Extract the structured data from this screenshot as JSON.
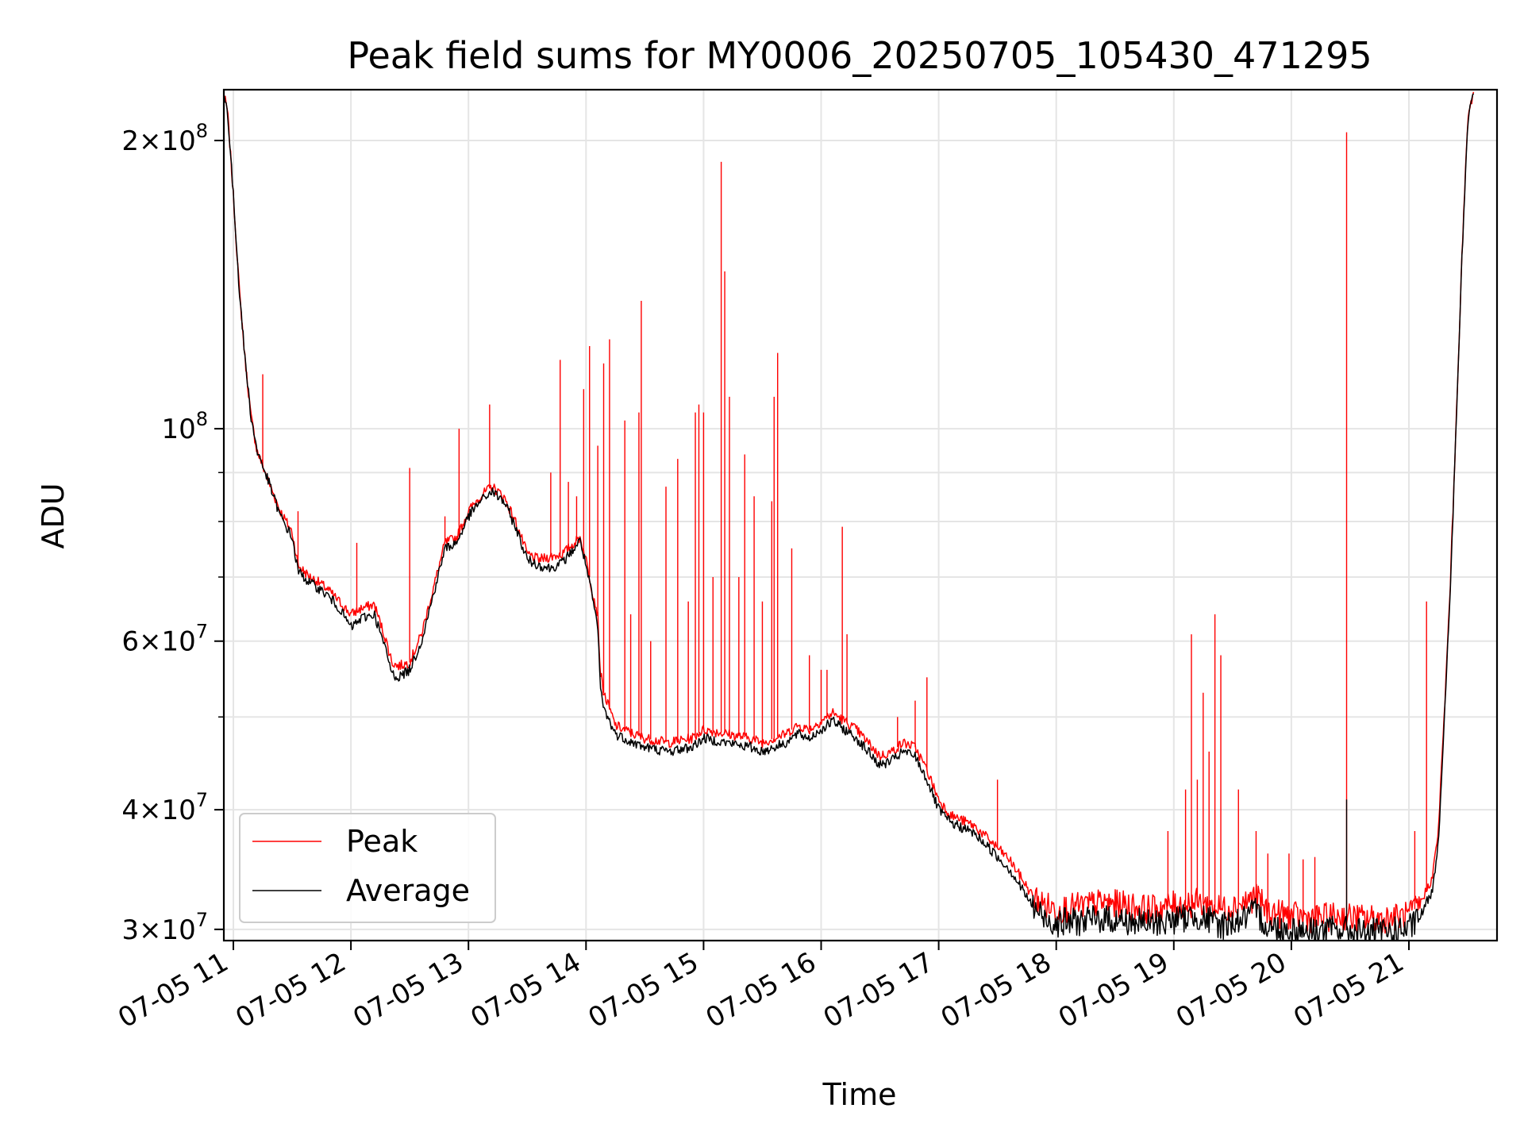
{
  "chart_data": {
    "type": "line",
    "title": "Peak field sums for MY0006_20250705_105430_471295",
    "xlabel": "Time",
    "ylabel": "ADU",
    "xlim": [
      "2025-07-05 10:55",
      "2025-07-05 21:44"
    ],
    "ylim": [
      29200000,
      226000000
    ],
    "yscale": "log",
    "grid": true,
    "legend_position": "lower-left",
    "x_tick_labels": [
      "07-05 11",
      "07-05 12",
      "07-05 13",
      "07-05 14",
      "07-05 15",
      "07-05 16",
      "07-05 17",
      "07-05 18",
      "07-05 19",
      "07-05 20",
      "07-05 21"
    ],
    "x_tick_hours": [
      11,
      12,
      13,
      14,
      15,
      16,
      17,
      18,
      19,
      20,
      21
    ],
    "y_major_ticks": [
      {
        "value": 200000000,
        "mantissa": "2",
        "exp": "8"
      },
      {
        "value": 100000000,
        "mantissa": "",
        "exp": "8"
      },
      {
        "value": 60000000,
        "mantissa": "6",
        "exp": "7"
      },
      {
        "value": 40000000,
        "mantissa": "4",
        "exp": "7"
      },
      {
        "value": 30000000,
        "mantissa": "3",
        "exp": "7"
      }
    ],
    "y_minor_ticks": [
      50000000,
      70000000,
      80000000,
      90000000
    ],
    "x_start_hour": 10.9083,
    "x_end_hour": 21.55,
    "series": [
      {
        "name": "Peak",
        "color": "#ff0000",
        "baseline": [
          [
            10.908,
            226000000
          ],
          [
            10.95,
            215000000
          ],
          [
            11.0,
            175000000
          ],
          [
            11.05,
            140000000
          ],
          [
            11.1,
            118000000
          ],
          [
            11.15,
            103000000
          ],
          [
            11.2,
            95000000
          ],
          [
            11.3,
            88000000
          ],
          [
            11.4,
            82000000
          ],
          [
            11.5,
            78000000
          ],
          [
            11.55,
            72000000
          ],
          [
            11.6,
            71000000
          ],
          [
            11.65,
            70000000
          ],
          [
            11.7,
            69500000
          ],
          [
            11.8,
            68000000
          ],
          [
            11.9,
            66000000
          ],
          [
            12.0,
            64000000
          ],
          [
            12.1,
            65000000
          ],
          [
            12.2,
            65500000
          ],
          [
            12.3,
            60000000
          ],
          [
            12.35,
            57000000
          ],
          [
            12.4,
            56500000
          ],
          [
            12.5,
            57000000
          ],
          [
            12.6,
            61000000
          ],
          [
            12.7,
            68000000
          ],
          [
            12.8,
            76000000
          ],
          [
            12.9,
            77000000
          ],
          [
            13.0,
            82000000
          ],
          [
            13.1,
            85000000
          ],
          [
            13.2,
            87000000
          ],
          [
            13.3,
            85000000
          ],
          [
            13.4,
            80000000
          ],
          [
            13.5,
            74000000
          ],
          [
            13.6,
            73000000
          ],
          [
            13.7,
            73500000
          ],
          [
            13.8,
            74000000
          ],
          [
            13.9,
            76000000
          ],
          [
            13.95,
            77000000
          ],
          [
            14.0,
            73000000
          ],
          [
            14.05,
            68000000
          ],
          [
            14.1,
            64000000
          ],
          [
            14.12,
            56000000
          ],
          [
            14.15,
            53000000
          ],
          [
            14.25,
            49000000
          ],
          [
            14.4,
            48000000
          ],
          [
            14.5,
            47500000
          ],
          [
            14.7,
            47000000
          ],
          [
            14.9,
            47500000
          ],
          [
            15.0,
            48500000
          ],
          [
            15.2,
            48000000
          ],
          [
            15.4,
            47500000
          ],
          [
            15.5,
            47000000
          ],
          [
            15.6,
            47500000
          ],
          [
            15.7,
            48000000
          ],
          [
            15.8,
            49000000
          ],
          [
            15.9,
            48500000
          ],
          [
            16.0,
            49500000
          ],
          [
            16.1,
            50500000
          ],
          [
            16.2,
            49500000
          ],
          [
            16.3,
            48500000
          ],
          [
            16.4,
            47000000
          ],
          [
            16.5,
            45500000
          ],
          [
            16.6,
            46000000
          ],
          [
            16.7,
            47000000
          ],
          [
            16.8,
            46500000
          ],
          [
            16.9,
            44000000
          ],
          [
            17.0,
            41000000
          ],
          [
            17.1,
            39500000
          ],
          [
            17.2,
            39000000
          ],
          [
            17.3,
            38500000
          ],
          [
            17.4,
            37500000
          ],
          [
            17.5,
            36500000
          ],
          [
            17.6,
            35500000
          ],
          [
            17.7,
            34000000
          ],
          [
            17.8,
            32500000
          ],
          [
            17.9,
            31800000
          ],
          [
            18.0,
            31500000
          ],
          [
            18.2,
            31700000
          ],
          [
            18.4,
            32000000
          ],
          [
            18.6,
            31800000
          ],
          [
            18.8,
            31500000
          ],
          [
            19.0,
            31800000
          ],
          [
            19.2,
            32000000
          ],
          [
            19.4,
            31500000
          ],
          [
            19.6,
            32000000
          ],
          [
            19.7,
            32500000
          ],
          [
            19.8,
            31300000
          ],
          [
            20.0,
            31000000
          ],
          [
            20.2,
            30800000
          ],
          [
            20.4,
            31000000
          ],
          [
            20.6,
            30800000
          ],
          [
            20.8,
            30800000
          ],
          [
            21.0,
            31000000
          ],
          [
            21.1,
            32000000
          ],
          [
            21.2,
            34000000
          ],
          [
            21.25,
            38000000
          ],
          [
            21.3,
            50000000
          ],
          [
            21.35,
            68000000
          ],
          [
            21.4,
            100000000
          ],
          [
            21.45,
            150000000
          ],
          [
            21.5,
            210000000
          ],
          [
            21.55,
            226000000
          ]
        ],
        "spikes": [
          [
            11.25,
            114000000
          ],
          [
            11.55,
            82000000
          ],
          [
            12.05,
            76000000
          ],
          [
            12.5,
            91000000
          ],
          [
            12.8,
            81000000
          ],
          [
            12.92,
            100000000
          ],
          [
            13.18,
            106000000
          ],
          [
            13.7,
            90000000
          ],
          [
            13.78,
            118000000
          ],
          [
            13.85,
            88000000
          ],
          [
            13.92,
            85000000
          ],
          [
            13.98,
            110000000
          ],
          [
            14.03,
            122000000
          ],
          [
            14.1,
            96000000
          ],
          [
            14.15,
            117000000
          ],
          [
            14.2,
            124000000
          ],
          [
            14.33,
            102000000
          ],
          [
            14.38,
            64000000
          ],
          [
            14.45,
            104000000
          ],
          [
            14.47,
            136000000
          ],
          [
            14.55,
            60000000
          ],
          [
            14.68,
            87000000
          ],
          [
            14.78,
            93000000
          ],
          [
            14.87,
            66000000
          ],
          [
            14.93,
            104000000
          ],
          [
            14.96,
            106000000
          ],
          [
            15.0,
            104000000
          ],
          [
            15.08,
            70000000
          ],
          [
            15.15,
            190000000
          ],
          [
            15.18,
            146000000
          ],
          [
            15.22,
            108000000
          ],
          [
            15.3,
            70000000
          ],
          [
            15.35,
            94000000
          ],
          [
            15.43,
            85000000
          ],
          [
            15.5,
            66000000
          ],
          [
            15.58,
            84000000
          ],
          [
            15.6,
            108000000
          ],
          [
            15.63,
            120000000
          ],
          [
            15.75,
            75000000
          ],
          [
            15.9,
            58000000
          ],
          [
            16.0,
            56000000
          ],
          [
            16.05,
            56000000
          ],
          [
            16.18,
            79000000
          ],
          [
            16.22,
            61000000
          ],
          [
            16.65,
            50000000
          ],
          [
            16.8,
            52000000
          ],
          [
            16.9,
            55000000
          ],
          [
            17.5,
            43000000
          ],
          [
            18.95,
            38000000
          ],
          [
            19.1,
            42000000
          ],
          [
            19.15,
            61000000
          ],
          [
            19.2,
            43000000
          ],
          [
            19.25,
            53000000
          ],
          [
            19.3,
            46000000
          ],
          [
            19.35,
            64000000
          ],
          [
            19.4,
            58000000
          ],
          [
            19.55,
            42000000
          ],
          [
            19.7,
            38000000
          ],
          [
            19.8,
            36000000
          ],
          [
            19.98,
            36000000
          ],
          [
            20.1,
            35500000
          ],
          [
            20.2,
            35700000
          ],
          [
            20.47,
            204000000
          ],
          [
            21.05,
            38000000
          ],
          [
            21.15,
            66000000
          ]
        ]
      },
      {
        "name": "Average",
        "color": "#000000",
        "baseline": [
          [
            10.908,
            226000000
          ],
          [
            10.95,
            215000000
          ],
          [
            11.0,
            175000000
          ],
          [
            11.05,
            140000000
          ],
          [
            11.1,
            118000000
          ],
          [
            11.15,
            103000000
          ],
          [
            11.2,
            95000000
          ],
          [
            11.3,
            88000000
          ],
          [
            11.4,
            81000000
          ],
          [
            11.5,
            77000000
          ],
          [
            11.55,
            71000000
          ],
          [
            11.6,
            70000000
          ],
          [
            11.65,
            69000000
          ],
          [
            11.7,
            68500000
          ],
          [
            11.8,
            67000000
          ],
          [
            11.9,
            65000000
          ],
          [
            12.0,
            62000000
          ],
          [
            12.1,
            63500000
          ],
          [
            12.2,
            64000000
          ],
          [
            12.3,
            58500000
          ],
          [
            12.35,
            55500000
          ],
          [
            12.4,
            55000000
          ],
          [
            12.5,
            56000000
          ],
          [
            12.6,
            60000000
          ],
          [
            12.7,
            67000000
          ],
          [
            12.8,
            75000000
          ],
          [
            12.9,
            76000000
          ],
          [
            13.0,
            81000000
          ],
          [
            13.1,
            84000000
          ],
          [
            13.2,
            86000000
          ],
          [
            13.3,
            84000000
          ],
          [
            13.4,
            79000000
          ],
          [
            13.5,
            73000000
          ],
          [
            13.6,
            72000000
          ],
          [
            13.7,
            71500000
          ],
          [
            13.8,
            72500000
          ],
          [
            13.9,
            75000000
          ],
          [
            13.95,
            76500000
          ],
          [
            14.0,
            72000000
          ],
          [
            14.05,
            67000000
          ],
          [
            14.1,
            62000000
          ],
          [
            14.12,
            54000000
          ],
          [
            14.15,
            51000000
          ],
          [
            14.25,
            48000000
          ],
          [
            14.4,
            47000000
          ],
          [
            14.5,
            46500000
          ],
          [
            14.7,
            46000000
          ],
          [
            14.9,
            46500000
          ],
          [
            15.0,
            47500000
          ],
          [
            15.2,
            47000000
          ],
          [
            15.4,
            46500000
          ],
          [
            15.5,
            46000000
          ],
          [
            15.6,
            46500000
          ],
          [
            15.7,
            47000000
          ],
          [
            15.8,
            48000000
          ],
          [
            15.9,
            47500000
          ],
          [
            16.0,
            48500000
          ],
          [
            16.1,
            49500000
          ],
          [
            16.2,
            48500000
          ],
          [
            16.3,
            47500000
          ],
          [
            16.4,
            46000000
          ],
          [
            16.5,
            44500000
          ],
          [
            16.6,
            45000000
          ],
          [
            16.7,
            46000000
          ],
          [
            16.8,
            45500000
          ],
          [
            16.9,
            43000000
          ],
          [
            17.0,
            40000000
          ],
          [
            17.1,
            38800000
          ],
          [
            17.2,
            38300000
          ],
          [
            17.3,
            37800000
          ],
          [
            17.4,
            36800000
          ],
          [
            17.5,
            35700000
          ],
          [
            17.6,
            34700000
          ],
          [
            17.7,
            33200000
          ],
          [
            17.8,
            31700000
          ],
          [
            17.9,
            30800000
          ],
          [
            18.0,
            30500000
          ],
          [
            18.2,
            30600000
          ],
          [
            18.4,
            30800000
          ],
          [
            18.6,
            30600000
          ],
          [
            18.8,
            30400000
          ],
          [
            19.0,
            30700000
          ],
          [
            19.2,
            31000000
          ],
          [
            19.4,
            30300000
          ],
          [
            19.6,
            30800000
          ],
          [
            19.7,
            31300000
          ],
          [
            19.8,
            30200000
          ],
          [
            20.0,
            30000000
          ],
          [
            20.2,
            29900000
          ],
          [
            20.4,
            30000000
          ],
          [
            20.6,
            29800000
          ],
          [
            20.8,
            29800000
          ],
          [
            21.0,
            30000000
          ],
          [
            21.1,
            31000000
          ],
          [
            21.2,
            33000000
          ],
          [
            21.25,
            37000000
          ],
          [
            21.3,
            49000000
          ],
          [
            21.35,
            67000000
          ],
          [
            21.4,
            99000000
          ],
          [
            21.45,
            149000000
          ],
          [
            21.5,
            209000000
          ],
          [
            21.55,
            226000000
          ]
        ],
        "spikes": [
          [
            20.47,
            41000000
          ]
        ]
      }
    ]
  }
}
